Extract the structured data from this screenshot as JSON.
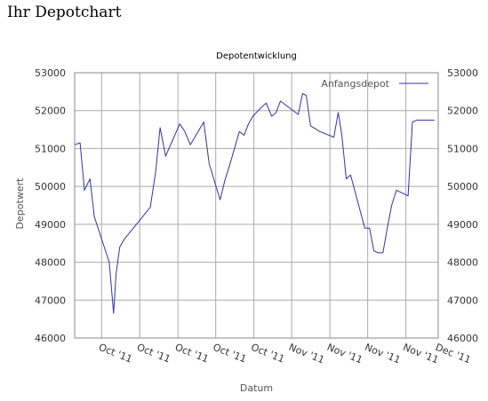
{
  "page": {
    "heading": "Ihr Depotchart"
  },
  "chart_data": {
    "type": "line",
    "title": "Depotentwicklung",
    "xlabel": "Datum",
    "ylabel": "Depotwert",
    "ylim": [
      46000,
      53000
    ],
    "yticks": [
      46000,
      47000,
      48000,
      49000,
      50000,
      51000,
      52000,
      53000
    ],
    "xlim": [
      0,
      100
    ],
    "xticks": [
      {
        "pos": 7.4,
        "label": "Oct '11"
      },
      {
        "pos": 17.9,
        "label": "Oct '11"
      },
      {
        "pos": 28.4,
        "label": "Oct '11"
      },
      {
        "pos": 38.8,
        "label": "Oct '11"
      },
      {
        "pos": 49.3,
        "label": "Oct '11"
      },
      {
        "pos": 59.7,
        "label": "Nov '11"
      },
      {
        "pos": 70.2,
        "label": "Nov '11"
      },
      {
        "pos": 80.6,
        "label": "Nov '11"
      },
      {
        "pos": 91.1,
        "label": "Nov '11"
      },
      {
        "pos": 100,
        "label": "Dec '11"
      }
    ],
    "grid": true,
    "legend": "top-right",
    "series": [
      {
        "name": "Anfangsdepot",
        "color": "#3333aa",
        "x": [
          0,
          1.5,
          2.7,
          4.2,
          5.4,
          9.5,
          10.7,
          11.4,
          12.4,
          13.6,
          20.8,
          22.3,
          23.5,
          25.0,
          28.9,
          30.3,
          31.8,
          35.5,
          37.0,
          40.0,
          41.3,
          42.6,
          44.1,
          45.3,
          46.6,
          47.8,
          49.0,
          51.5,
          52.7,
          54.2,
          55.4,
          56.6,
          61.5,
          62.7,
          63.7,
          64.9,
          67.4,
          71.3,
          72.5,
          73.5,
          74.7,
          75.9,
          79.8,
          81.1,
          82.3,
          83.5,
          84.8,
          86.0,
          87.2,
          88.5,
          91.7,
          92.9,
          94.1,
          95.3,
          96.6,
          97.8,
          99.0
        ],
        "y": [
          51100,
          51150,
          49900,
          50200,
          49200,
          48000,
          46650,
          47700,
          48400,
          48600,
          49450,
          50400,
          51550,
          50800,
          51650,
          51450,
          51100,
          51700,
          50600,
          49650,
          50150,
          50550,
          51050,
          51450,
          51350,
          51650,
          51850,
          52100,
          52200,
          51850,
          51950,
          52250,
          51900,
          52450,
          52400,
          51600,
          51450,
          51300,
          51950,
          51350,
          50200,
          50300,
          48900,
          48900,
          48300,
          48250,
          48250,
          48900,
          49500,
          49900,
          49750,
          51700,
          51750,
          51750,
          51750,
          51750,
          51750
        ]
      }
    ]
  }
}
